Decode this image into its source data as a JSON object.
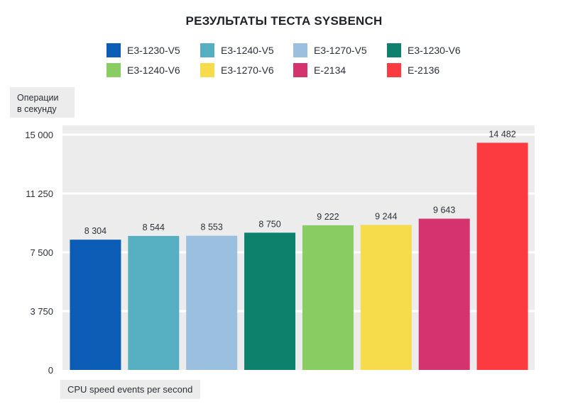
{
  "chart_data": {
    "type": "bar",
    "title": "РЕЗУЛЬТАТЫ ТЕСТА SYSBENCH",
    "ylabel_lines": [
      "Операции",
      "в секунду"
    ],
    "xlabel": "CPU speed events per second",
    "ylim": [
      0,
      15000
    ],
    "yticks": [
      0,
      3750,
      7500,
      11250,
      15000
    ],
    "ytick_labels": [
      "0",
      "3 750",
      "7 500",
      "11 250",
      "15 000"
    ],
    "grid": true,
    "legend_position": "top",
    "categories": [
      "E3-1230-V5",
      "E3-1240-V5",
      "E3-1270-V5",
      "E3-1230-V6",
      "E3-1240-V6",
      "E3-1270-V6",
      "E-2134",
      "E-2136"
    ],
    "series": [
      {
        "name": "E3-1230-V5",
        "value": 8304,
        "label": "8 304",
        "color": "#0a5cb5"
      },
      {
        "name": "E3-1240-V5",
        "value": 8544,
        "label": "8 544",
        "color": "#56afc1"
      },
      {
        "name": "E3-1270-V5",
        "value": 8553,
        "label": "8 553",
        "color": "#9abfdf"
      },
      {
        "name": "E3-1230-V6",
        "value": 8750,
        "label": "8 750",
        "color": "#0e816c"
      },
      {
        "name": "E3-1240-V6",
        "value": 9222,
        "label": "9 222",
        "color": "#89cc61"
      },
      {
        "name": "E3-1270-V6",
        "value": 9244,
        "label": "9 244",
        "color": "#f6dc4a"
      },
      {
        "name": "E-2134",
        "value": 9643,
        "label": "9 643",
        "color": "#d5336d"
      },
      {
        "name": "E-2136",
        "value": 14482,
        "label": "14 482",
        "color": "#fb3b3f"
      }
    ],
    "colors": {
      "plot_background": "#ececec",
      "gridline": "#ffffff",
      "text": "#2b3038"
    }
  }
}
